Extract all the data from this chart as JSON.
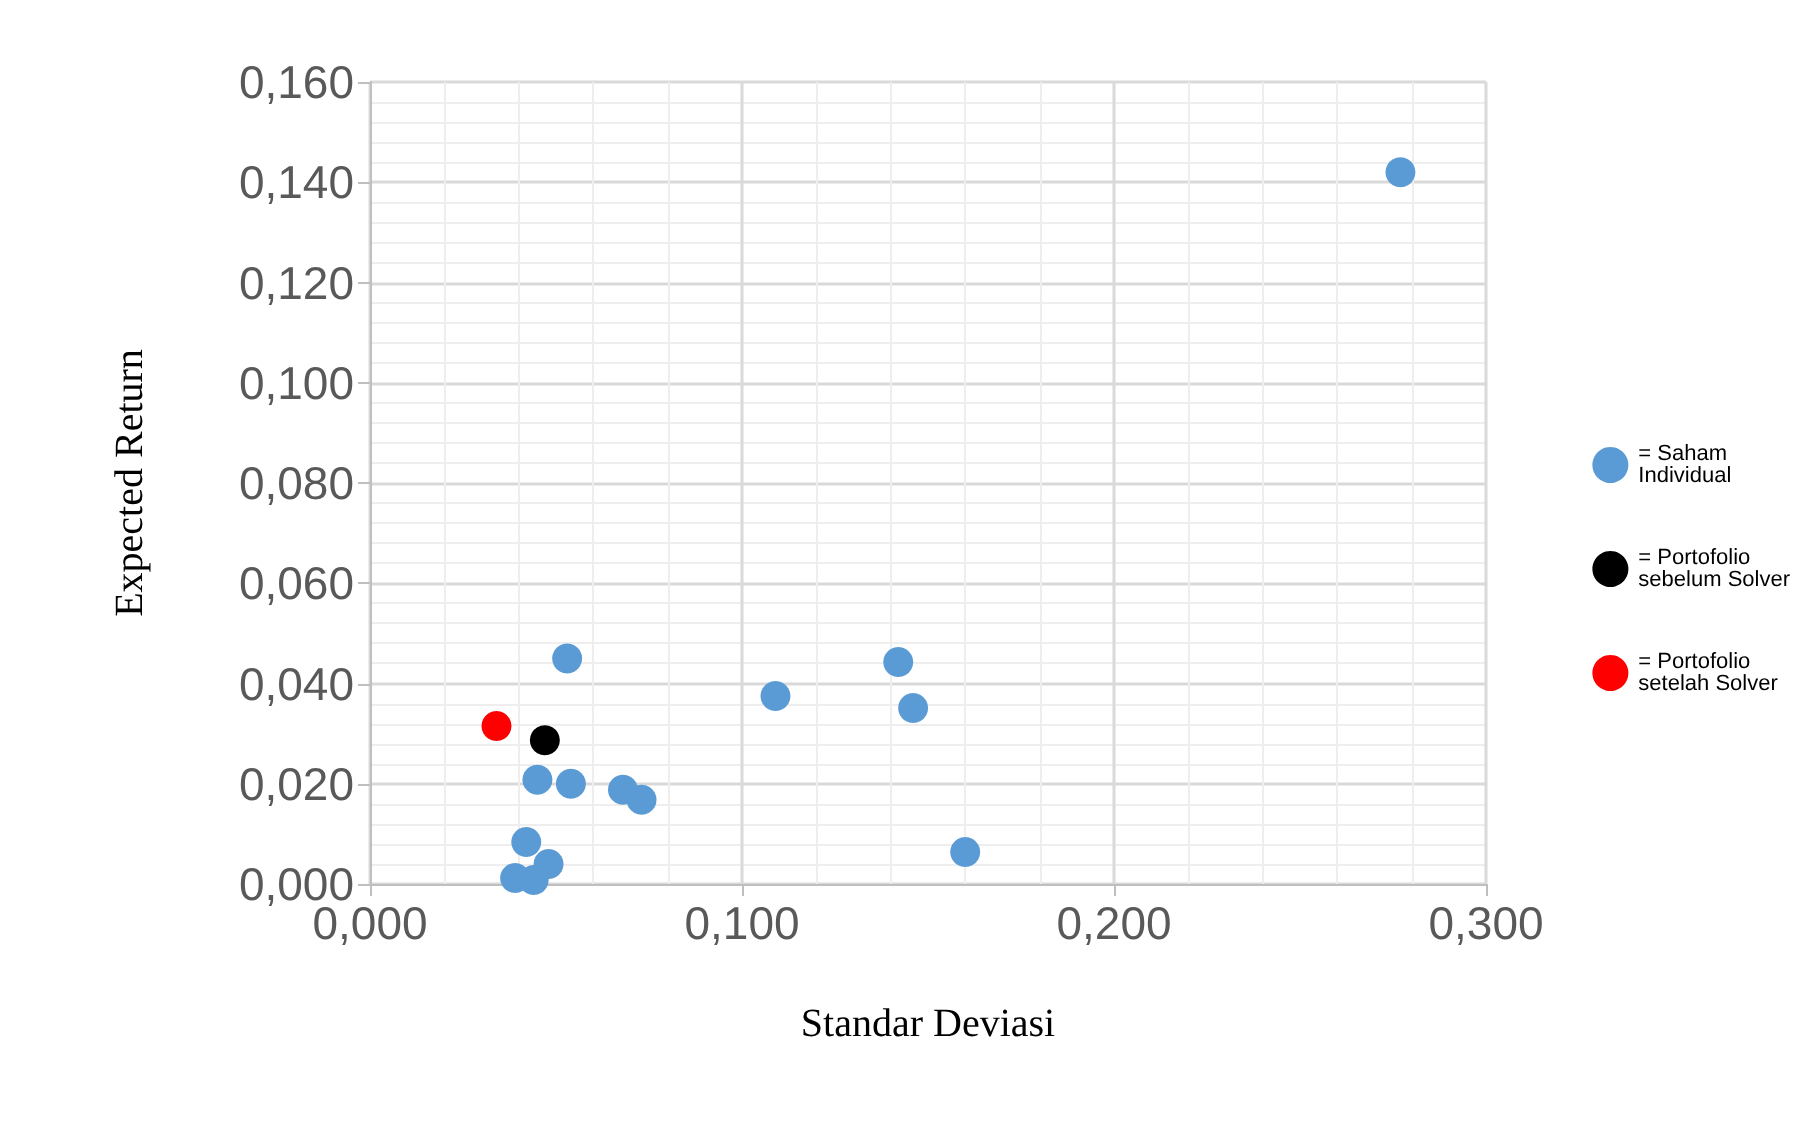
{
  "chart_data": {
    "type": "scatter",
    "xlabel": "Standar Deviasi",
    "ylabel": "Expected Return",
    "xlim": [
      0,
      0.3
    ],
    "xticks": [
      {
        "value": 0,
        "label": "0,000"
      },
      {
        "value": 0.1,
        "label": "0,100"
      },
      {
        "value": 0.2,
        "label": "0,200"
      },
      {
        "value": 0.3,
        "label": "0,300"
      }
    ],
    "ylim": [
      0,
      0.16
    ],
    "yticks": [
      {
        "value": 0,
        "label": "0,000"
      },
      {
        "value": 0.02,
        "label": "0,020"
      },
      {
        "value": 0.04,
        "label": "0,040"
      },
      {
        "value": 0.06,
        "label": "0,060"
      },
      {
        "value": 0.08,
        "label": "0,080"
      },
      {
        "value": 0.1,
        "label": "0,100"
      },
      {
        "value": 0.12,
        "label": "0,120"
      },
      {
        "value": 0.14,
        "label": "0,140"
      },
      {
        "value": 0.16,
        "label": "0,160"
      }
    ],
    "grid": true,
    "legend": "right",
    "marker": "circle",
    "series": [
      {
        "name": "= Saham Individual",
        "color": "#5b9bd5",
        "x": [
          0.277,
          0.053,
          0.109,
          0.142,
          0.146,
          0.16,
          0.045,
          0.054,
          0.068,
          0.073,
          0.042,
          0.048,
          0.039,
          0.044
        ],
        "values": [
          0.142,
          0.045,
          0.0375,
          0.0443,
          0.0351,
          0.0064,
          0.0208,
          0.02,
          0.0188,
          0.0168,
          0.0084,
          0.004,
          0.0012,
          0.0008
        ]
      },
      {
        "name": "= Portofolio sebelum Solver",
        "color": "#000000",
        "x": [
          0.047
        ],
        "values": [
          0.0287
        ]
      },
      {
        "name": "= Portofolio setelah Solver",
        "color": "#ff0000",
        "x": [
          0.034
        ],
        "values": [
          0.0315
        ]
      }
    ]
  }
}
